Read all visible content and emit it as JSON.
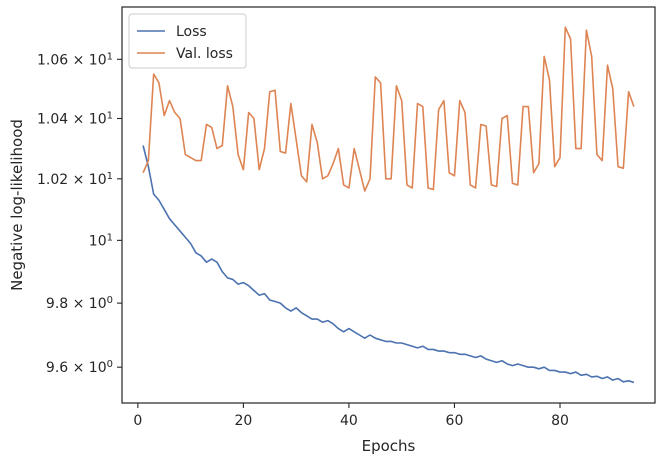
{
  "chart_data": {
    "type": "line",
    "xlabel": "Epochs",
    "ylabel": "Negative log-likelihood",
    "y_scale": "log",
    "xlim": [
      -3,
      98
    ],
    "ylim": [
      9.49,
      10.78
    ],
    "grid": false,
    "legend_position": "top-left",
    "x_ticks": [
      {
        "value": 0,
        "label": "0"
      },
      {
        "value": 20,
        "label": "20"
      },
      {
        "value": 40,
        "label": "40"
      },
      {
        "value": 60,
        "label": "60"
      },
      {
        "value": 80,
        "label": "80"
      }
    ],
    "y_ticks": [
      {
        "value": 9.6,
        "base": "9.6",
        "mult": "×",
        "pow": "10",
        "exp": "0"
      },
      {
        "value": 9.8,
        "base": "9.8",
        "mult": "×",
        "pow": "10",
        "exp": "0"
      },
      {
        "value": 10.0,
        "base": "10",
        "mult": "",
        "pow": "",
        "exp": "1"
      },
      {
        "value": 10.2,
        "base": "1.02",
        "mult": "×",
        "pow": "10",
        "exp": "1"
      },
      {
        "value": 10.4,
        "base": "1.04",
        "mult": "×",
        "pow": "10",
        "exp": "1"
      },
      {
        "value": 10.6,
        "base": "1.06",
        "mult": "×",
        "pow": "10",
        "exp": "1"
      }
    ],
    "series": [
      {
        "name": "Loss",
        "color": "#4c72b0",
        "x": [
          1,
          2,
          3,
          4,
          5,
          6,
          7,
          8,
          9,
          10,
          11,
          12,
          13,
          14,
          15,
          16,
          17,
          18,
          19,
          20,
          21,
          22,
          23,
          24,
          25,
          26,
          27,
          28,
          29,
          30,
          31,
          32,
          33,
          34,
          35,
          36,
          37,
          38,
          39,
          40,
          41,
          42,
          43,
          44,
          45,
          46,
          47,
          48,
          49,
          50,
          51,
          52,
          53,
          54,
          55,
          56,
          57,
          58,
          59,
          60,
          61,
          62,
          63,
          64,
          65,
          66,
          67,
          68,
          69,
          70,
          71,
          72,
          73,
          74,
          75,
          76,
          77,
          78,
          79,
          80,
          81,
          82,
          83,
          84,
          85,
          86,
          87,
          88,
          89,
          90,
          91,
          92,
          93,
          94
        ],
        "values": [
          10.31,
          10.24,
          10.15,
          10.13,
          10.1,
          10.07,
          10.05,
          10.03,
          10.01,
          9.99,
          9.96,
          9.95,
          9.93,
          9.94,
          9.93,
          9.9,
          9.88,
          9.875,
          9.86,
          9.865,
          9.855,
          9.84,
          9.825,
          9.83,
          9.81,
          9.805,
          9.8,
          9.785,
          9.775,
          9.785,
          9.77,
          9.76,
          9.75,
          9.75,
          9.74,
          9.745,
          9.735,
          9.72,
          9.71,
          9.72,
          9.71,
          9.7,
          9.69,
          9.7,
          9.69,
          9.685,
          9.68,
          9.68,
          9.675,
          9.675,
          9.67,
          9.665,
          9.66,
          9.665,
          9.655,
          9.655,
          9.65,
          9.65,
          9.645,
          9.645,
          9.64,
          9.64,
          9.635,
          9.63,
          9.635,
          9.625,
          9.62,
          9.615,
          9.62,
          9.61,
          9.605,
          9.61,
          9.605,
          9.6,
          9.6,
          9.595,
          9.6,
          9.59,
          9.59,
          9.585,
          9.585,
          9.58,
          9.585,
          9.575,
          9.578,
          9.57,
          9.572,
          9.565,
          9.57,
          9.56,
          9.565,
          9.555,
          9.558,
          9.553
        ]
      },
      {
        "name": "Val. loss",
        "color": "#dd8452",
        "x": [
          1,
          2,
          3,
          4,
          5,
          6,
          7,
          8,
          9,
          10,
          11,
          12,
          13,
          14,
          15,
          16,
          17,
          18,
          19,
          20,
          21,
          22,
          23,
          24,
          25,
          26,
          27,
          28,
          29,
          30,
          31,
          32,
          33,
          34,
          35,
          36,
          37,
          38,
          39,
          40,
          41,
          42,
          43,
          44,
          45,
          46,
          47,
          48,
          49,
          50,
          51,
          52,
          53,
          54,
          55,
          56,
          57,
          58,
          59,
          60,
          61,
          62,
          63,
          64,
          65,
          66,
          67,
          68,
          69,
          70,
          71,
          72,
          73,
          74,
          75,
          76,
          77,
          78,
          79,
          80,
          81,
          82,
          83,
          84,
          85,
          86,
          87,
          88,
          89,
          90,
          91,
          92,
          93,
          94
        ],
        "values": [
          10.22,
          10.26,
          10.55,
          10.52,
          10.41,
          10.46,
          10.42,
          10.4,
          10.28,
          10.27,
          10.26,
          10.26,
          10.38,
          10.37,
          10.3,
          10.31,
          10.51,
          10.44,
          10.28,
          10.23,
          10.42,
          10.4,
          10.23,
          10.3,
          10.49,
          10.495,
          10.29,
          10.285,
          10.45,
          10.33,
          10.21,
          10.19,
          10.38,
          10.32,
          10.2,
          10.21,
          10.25,
          10.3,
          10.18,
          10.17,
          10.3,
          10.23,
          10.16,
          10.2,
          10.54,
          10.52,
          10.2,
          10.2,
          10.51,
          10.46,
          10.18,
          10.17,
          10.45,
          10.44,
          10.17,
          10.165,
          10.43,
          10.46,
          10.22,
          10.21,
          10.46,
          10.42,
          10.18,
          10.17,
          10.38,
          10.375,
          10.18,
          10.175,
          10.4,
          10.41,
          10.185,
          10.18,
          10.44,
          10.44,
          10.22,
          10.25,
          10.61,
          10.53,
          10.24,
          10.27,
          10.71,
          10.67,
          10.3,
          10.3,
          10.7,
          10.61,
          10.28,
          10.26,
          10.58,
          10.5,
          10.24,
          10.235,
          10.49,
          10.44
        ]
      }
    ]
  }
}
